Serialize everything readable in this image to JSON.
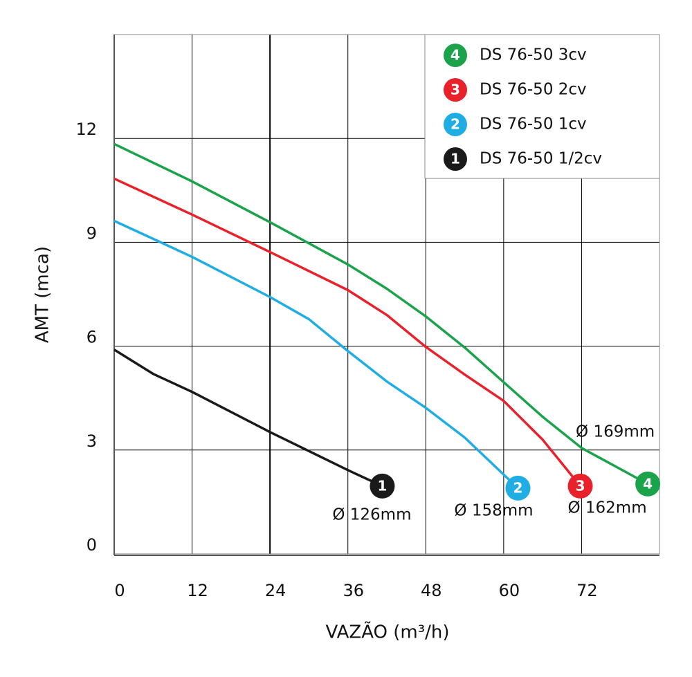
{
  "chart_data": {
    "type": "line",
    "x_label": "VAZÃO (m³/h)",
    "y_label": "AMT (mca)",
    "xlim": [
      0,
      84
    ],
    "ylim": [
      0,
      15
    ],
    "xticks": [
      0,
      12,
      24,
      36,
      48,
      60,
      72
    ],
    "yticks": [
      0,
      3,
      6,
      9,
      12
    ],
    "grid": true,
    "legend": "upper right",
    "series": [
      {
        "name": "DS 76-50 3cv",
        "marker": "4",
        "label": "Ø 169mm",
        "color": "#1aa34a",
        "x": [
          0,
          12,
          24,
          36,
          42,
          48,
          54,
          60,
          66,
          72,
          82.2
        ],
        "values": [
          11.84,
          10.76,
          9.58,
          8.36,
          7.66,
          6.86,
          5.96,
          4.96,
          3.96,
          3.06,
          2.02
        ]
      },
      {
        "name": "DS 76-50 2cv",
        "marker": "3",
        "label": "Ø 162mm",
        "color": "#e8212b",
        "x": [
          0,
          12,
          24,
          36,
          42,
          48,
          54,
          60,
          66,
          71.8
        ],
        "values": [
          10.84,
          9.8,
          8.72,
          7.62,
          6.9,
          5.98,
          5.18,
          4.42,
          3.3,
          1.96
        ]
      },
      {
        "name": "DS 76-50 1cv",
        "marker": "2",
        "label": "Ø 158mm",
        "color": "#1fade4",
        "x": [
          0,
          12,
          24,
          30,
          36,
          42,
          48,
          54,
          62.2
        ],
        "values": [
          9.62,
          8.58,
          7.42,
          6.78,
          5.86,
          4.98,
          4.22,
          3.36,
          1.9
        ]
      },
      {
        "name": "DS 76-50 1/2cv",
        "marker": "1",
        "label": "Ø 126mm",
        "color": "#1a1a1a",
        "x": [
          0,
          6,
          12,
          24,
          36,
          41.3
        ],
        "values": [
          5.9,
          5.2,
          4.68,
          3.52,
          2.42,
          1.96
        ]
      }
    ]
  }
}
